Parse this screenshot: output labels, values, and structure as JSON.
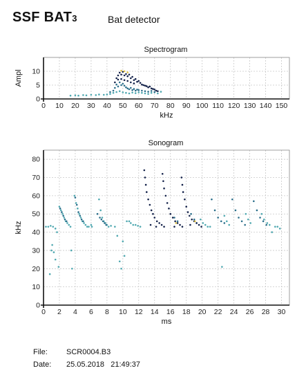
{
  "header": {
    "title_main": "SSF BAT",
    "title_sub": "3",
    "subtitle": "Bat detector"
  },
  "info": {
    "file_label": "File:",
    "file_value": "SCR0004.B3",
    "date_label": "Date:",
    "date_value": "25.05.2018   21:49:37"
  },
  "colors": {
    "dot_light": "#4fa8b0",
    "dot_mid": "#2a6e8a",
    "dot_dark": "#14224a",
    "dot_yellow": "#e0c040",
    "grid": "#c8c8c8"
  },
  "chart_data": [
    {
      "type": "scatter",
      "title": "Spectrogram",
      "xlabel": "kHz",
      "ylabel": "Ampl",
      "xlim": [
        0,
        155
      ],
      "ylim": [
        0,
        15
      ],
      "xticks": [
        0,
        10,
        20,
        30,
        40,
        50,
        60,
        70,
        80,
        90,
        100,
        110,
        120,
        130,
        140,
        150
      ],
      "yticks": [
        0,
        5,
        10
      ],
      "grid": true,
      "series": [
        {
          "points": [
            [
              17,
              1.2
            ],
            [
              20,
              1.3
            ],
            [
              22,
              1.2
            ],
            [
              25,
              1.4
            ],
            [
              27,
              1.3
            ],
            [
              30,
              1.5
            ],
            [
              33,
              1.4
            ],
            [
              35,
              1.6
            ],
            [
              38,
              1.5
            ],
            [
              40,
              1.6
            ],
            [
              42,
              1.8
            ],
            [
              44,
              2.2
            ],
            [
              46,
              2.5
            ],
            [
              48,
              2.8
            ],
            [
              50,
              2.4
            ],
            [
              52,
              2.2
            ],
            [
              54,
              2.0
            ],
            [
              56,
              2.3
            ],
            [
              58,
              2.1
            ],
            [
              60,
              2.4
            ],
            [
              62,
              2.2
            ],
            [
              64,
              2.0
            ],
            [
              66,
              1.8
            ],
            [
              68,
              2.2
            ],
            [
              70,
              2.4
            ],
            [
              72,
              2.0
            ],
            [
              74,
              2.6
            ]
          ]
        },
        {
          "points": [
            [
              42,
              2.5
            ],
            [
              44,
              3.0
            ],
            [
              45,
              4.0
            ],
            [
              46,
              5.2
            ],
            [
              47,
              4.5
            ],
            [
              48,
              6.0
            ],
            [
              49,
              5.0
            ],
            [
              50,
              5.5
            ],
            [
              51,
              4.8
            ],
            [
              52,
              4.2
            ],
            [
              53,
              3.8
            ],
            [
              54,
              3.5
            ],
            [
              55,
              4.0
            ],
            [
              56,
              3.2
            ],
            [
              57,
              3.6
            ],
            [
              58,
              3.0
            ],
            [
              59,
              3.4
            ],
            [
              60,
              3.2
            ],
            [
              62,
              3.0
            ],
            [
              64,
              2.8
            ],
            [
              66,
              2.6
            ],
            [
              68,
              2.9
            ],
            [
              70,
              2.5
            ]
          ]
        },
        {
          "points": [
            [
              45,
              6.0
            ],
            [
              46,
              7.5
            ],
            [
              47,
              8.5
            ],
            [
              48,
              9.5
            ],
            [
              49,
              8.8
            ],
            [
              50,
              9.8
            ],
            [
              51,
              8.5
            ],
            [
              52,
              9.0
            ],
            [
              53,
              8.2
            ],
            [
              54,
              8.8
            ],
            [
              55,
              7.5
            ],
            [
              56,
              8.0
            ],
            [
              57,
              6.8
            ],
            [
              58,
              7.2
            ],
            [
              59,
              6.2
            ],
            [
              60,
              6.5
            ],
            [
              61,
              5.8
            ],
            [
              62,
              5.2
            ],
            [
              63,
              5.0
            ],
            [
              64,
              4.8
            ],
            [
              65,
              4.6
            ],
            [
              66,
              4.2
            ],
            [
              67,
              4.5
            ],
            [
              68,
              3.8
            ],
            [
              69,
              3.6
            ],
            [
              70,
              3.4
            ],
            [
              71,
              3.0
            ],
            [
              72,
              2.8
            ],
            [
              47,
              7.0
            ],
            [
              49,
              7.2
            ],
            [
              51,
              6.8
            ],
            [
              53,
              6.5
            ],
            [
              55,
              6.0
            ],
            [
              57,
              5.6
            ]
          ]
        },
        {
          "points": [
            [
              49,
              10.2
            ],
            [
              51,
              10.0
            ],
            [
              53,
              9.6
            ]
          ]
        }
      ]
    },
    {
      "type": "scatter",
      "title": "Sonogram",
      "xlabel": "ms",
      "ylabel": "kHz",
      "xlim": [
        0,
        31
      ],
      "ylim": [
        0,
        85
      ],
      "xticks": [
        0,
        2,
        4,
        6,
        8,
        10,
        12,
        14,
        16,
        18,
        20,
        22,
        24,
        26,
        28,
        30
      ],
      "yticks": [
        0,
        10,
        20,
        30,
        40,
        50,
        60,
        70,
        80
      ],
      "grid": true,
      "series": [
        {
          "points": [
            [
              0.3,
              43
            ],
            [
              0.6,
              43
            ],
            [
              0.9,
              43.5
            ],
            [
              1.2,
              43
            ],
            [
              1.5,
              42
            ],
            [
              0.8,
              17
            ],
            [
              1.0,
              30
            ],
            [
              1.1,
              33
            ],
            [
              1.3,
              29
            ],
            [
              1.5,
              25
            ],
            [
              1.7,
              40
            ],
            [
              1.9,
              21
            ],
            [
              2.0,
              54
            ],
            [
              2.2,
              52
            ],
            [
              2.4,
              50
            ],
            [
              2.6,
              48
            ],
            [
              2.8,
              46
            ],
            [
              3.0,
              45
            ],
            [
              3.2,
              44
            ],
            [
              3.4,
              43
            ],
            [
              3.5,
              30
            ],
            [
              3.6,
              20
            ],
            [
              3.9,
              60
            ],
            [
              4.1,
              56
            ],
            [
              4.3,
              53
            ],
            [
              4.5,
              50
            ],
            [
              4.7,
              48
            ],
            [
              4.9,
              46
            ],
            [
              5.1,
              45
            ],
            [
              5.3,
              44
            ],
            [
              5.5,
              43
            ],
            [
              5.7,
              43
            ],
            [
              6.0,
              44
            ],
            [
              6.1,
              43
            ],
            [
              7.0,
              58
            ],
            [
              7.2,
              52
            ],
            [
              7.4,
              48
            ],
            [
              7.6,
              46
            ],
            [
              7.8,
              45
            ],
            [
              8.0,
              44
            ],
            [
              8.2,
              43
            ],
            [
              8.5,
              43.5
            ],
            [
              9.0,
              43
            ],
            [
              9.3,
              38
            ],
            [
              9.6,
              24
            ],
            [
              9.8,
              20
            ],
            [
              10.0,
              35
            ],
            [
              10.2,
              27
            ],
            [
              10.5,
              46
            ],
            [
              10.8,
              46
            ],
            [
              11.0,
              45
            ],
            [
              11.3,
              44
            ],
            [
              11.6,
              44
            ],
            [
              11.9,
              43.5
            ],
            [
              12.2,
              43
            ],
            [
              19.8,
              47
            ],
            [
              20.1,
              45
            ],
            [
              20.4,
              44
            ],
            [
              20.7,
              43
            ],
            [
              21.0,
              43
            ],
            [
              22.8,
              49
            ],
            [
              23.1,
              46
            ],
            [
              23.4,
              44
            ],
            [
              25.5,
              50
            ],
            [
              25.8,
              47
            ],
            [
              26.1,
              45
            ],
            [
              27.5,
              50
            ],
            [
              27.8,
              47
            ],
            [
              28.2,
              45
            ],
            [
              28.5,
              44
            ],
            [
              28.8,
              40
            ],
            [
              29.2,
              43
            ],
            [
              29.5,
              43
            ],
            [
              29.8,
              42
            ],
            [
              22.5,
              21
            ]
          ]
        },
        {
          "points": [
            [
              2.1,
              53
            ],
            [
              2.3,
              51
            ],
            [
              2.5,
              49
            ],
            [
              2.7,
              47
            ],
            [
              2.9,
              46
            ],
            [
              4.0,
              59
            ],
            [
              4.2,
              55
            ],
            [
              4.4,
              51
            ],
            [
              4.6,
              49
            ],
            [
              4.8,
              47
            ],
            [
              5.0,
              46
            ],
            [
              6.8,
              50
            ],
            [
              7.1,
              48
            ],
            [
              7.3,
              47
            ],
            [
              7.5,
              46
            ],
            [
              7.7,
              45
            ],
            [
              7.9,
              44
            ],
            [
              16.5,
              48
            ],
            [
              16.9,
              46
            ],
            [
              18.6,
              50
            ],
            [
              19.0,
              47
            ],
            [
              19.3,
              45
            ],
            [
              21.2,
              58
            ],
            [
              21.6,
              52
            ],
            [
              22.0,
              48
            ],
            [
              22.4,
              46
            ],
            [
              22.8,
              45
            ],
            [
              23.8,
              58
            ],
            [
              24.2,
              52
            ],
            [
              24.6,
              48
            ],
            [
              25.0,
              46
            ],
            [
              25.4,
              44
            ],
            [
              26.5,
              57
            ],
            [
              26.9,
              52
            ],
            [
              27.3,
              48
            ],
            [
              27.7,
              46
            ],
            [
              28.1,
              44
            ]
          ]
        },
        {
          "points": [
            [
              12.7,
              74
            ],
            [
              12.8,
              70
            ],
            [
              12.9,
              66
            ],
            [
              13.0,
              62
            ],
            [
              13.2,
              58
            ],
            [
              13.4,
              55
            ],
            [
              13.6,
              52
            ],
            [
              13.8,
              50
            ],
            [
              14.0,
              48
            ],
            [
              14.3,
              46
            ],
            [
              14.6,
              45
            ],
            [
              14.9,
              44
            ],
            [
              15.2,
              43
            ],
            [
              15.0,
              72
            ],
            [
              15.1,
              68
            ],
            [
              15.2,
              64
            ],
            [
              15.4,
              60
            ],
            [
              15.6,
              56
            ],
            [
              15.8,
              53
            ],
            [
              16.0,
              50
            ],
            [
              16.3,
              48
            ],
            [
              16.6,
              46
            ],
            [
              16.9,
              45
            ],
            [
              17.2,
              44
            ],
            [
              17.5,
              43
            ],
            [
              17.4,
              70
            ],
            [
              17.5,
              66
            ],
            [
              17.6,
              62
            ],
            [
              17.8,
              58
            ],
            [
              18.0,
              54
            ],
            [
              18.2,
              51
            ],
            [
              18.4,
              49
            ],
            [
              18.7,
              47
            ],
            [
              19.0,
              46
            ],
            [
              19.3,
              45
            ],
            [
              19.6,
              44
            ],
            [
              19.9,
              43
            ],
            [
              13.5,
              44
            ],
            [
              14.2,
              43
            ],
            [
              16.5,
              43
            ],
            [
              18.5,
              44
            ]
          ]
        },
        {
          "points": [
            [
              16.7,
              45
            ],
            [
              19.1,
              46
            ]
          ]
        }
      ]
    }
  ]
}
